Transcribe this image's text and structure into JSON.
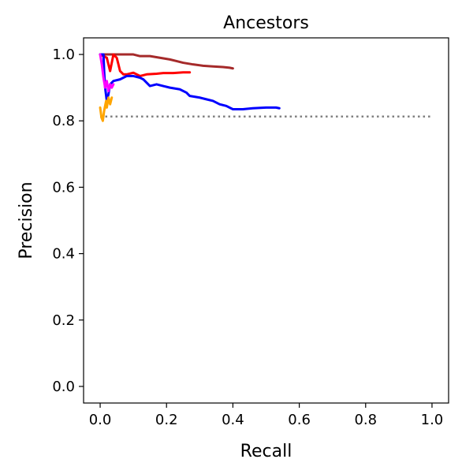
{
  "chart_data": {
    "type": "line",
    "title": "Ancestors",
    "xlabel": "Recall",
    "ylabel": "Precision",
    "xlim": [
      -0.05,
      1.05
    ],
    "ylim": [
      -0.05,
      1.05
    ],
    "xticks": [
      0.0,
      0.2,
      0.4,
      0.6,
      0.8,
      1.0
    ],
    "yticks": [
      0.0,
      0.2,
      0.4,
      0.6,
      0.8,
      1.0
    ],
    "xtick_labels": [
      "0.0",
      "0.2",
      "0.4",
      "0.6",
      "0.8",
      "1.0"
    ],
    "ytick_labels": [
      "0.0",
      "0.2",
      "0.4",
      "0.6",
      "0.8",
      "1.0"
    ],
    "grid": false,
    "legend": "none",
    "baseline": {
      "y": 0.813,
      "x": [
        0.0,
        1.0
      ],
      "color": "#808080",
      "style": "dotted"
    },
    "series": [
      {
        "color": "#a52a2a",
        "points": [
          [
            0.0,
            1.0
          ],
          [
            0.01,
            1.0
          ],
          [
            0.05,
            1.0
          ],
          [
            0.1,
            1.0
          ],
          [
            0.12,
            0.995
          ],
          [
            0.15,
            0.995
          ],
          [
            0.18,
            0.99
          ],
          [
            0.21,
            0.985
          ],
          [
            0.23,
            0.98
          ],
          [
            0.25,
            0.975
          ],
          [
            0.28,
            0.97
          ],
          [
            0.31,
            0.966
          ],
          [
            0.34,
            0.964
          ],
          [
            0.37,
            0.962
          ],
          [
            0.39,
            0.96
          ],
          [
            0.4,
            0.958
          ]
        ]
      },
      {
        "color": "#ff0000",
        "points": [
          [
            0.0,
            1.0
          ],
          [
            0.02,
            0.99
          ],
          [
            0.03,
            0.95
          ],
          [
            0.04,
            1.0
          ],
          [
            0.05,
            0.99
          ],
          [
            0.055,
            0.97
          ],
          [
            0.06,
            0.95
          ],
          [
            0.07,
            0.94
          ],
          [
            0.08,
            0.94
          ],
          [
            0.1,
            0.945
          ],
          [
            0.12,
            0.935
          ],
          [
            0.14,
            0.94
          ],
          [
            0.17,
            0.942
          ],
          [
            0.19,
            0.944
          ],
          [
            0.22,
            0.944
          ],
          [
            0.25,
            0.946
          ],
          [
            0.27,
            0.946
          ]
        ]
      },
      {
        "color": "#0000ff",
        "points": [
          [
            0.0,
            1.0
          ],
          [
            0.01,
            1.0
          ],
          [
            0.012,
            0.95
          ],
          [
            0.015,
            0.9
          ],
          [
            0.02,
            0.86
          ],
          [
            0.025,
            0.88
          ],
          [
            0.03,
            0.91
          ],
          [
            0.04,
            0.92
          ],
          [
            0.06,
            0.925
          ],
          [
            0.08,
            0.935
          ],
          [
            0.1,
            0.935
          ],
          [
            0.12,
            0.93
          ],
          [
            0.13,
            0.925
          ],
          [
            0.14,
            0.915
          ],
          [
            0.15,
            0.905
          ],
          [
            0.17,
            0.91
          ],
          [
            0.19,
            0.905
          ],
          [
            0.21,
            0.9
          ],
          [
            0.24,
            0.895
          ],
          [
            0.26,
            0.885
          ],
          [
            0.27,
            0.875
          ],
          [
            0.3,
            0.87
          ],
          [
            0.32,
            0.865
          ],
          [
            0.34,
            0.86
          ],
          [
            0.36,
            0.85
          ],
          [
            0.38,
            0.845
          ],
          [
            0.4,
            0.835
          ],
          [
            0.43,
            0.835
          ],
          [
            0.46,
            0.838
          ],
          [
            0.5,
            0.84
          ],
          [
            0.53,
            0.84
          ],
          [
            0.54,
            0.838
          ]
        ]
      },
      {
        "color": "#ff00ff",
        "points": [
          [
            0.0,
            1.0
          ],
          [
            0.005,
            0.97
          ],
          [
            0.01,
            0.93
          ],
          [
            0.015,
            0.9
          ],
          [
            0.02,
            0.92
          ],
          [
            0.025,
            0.89
          ],
          [
            0.03,
            0.91
          ],
          [
            0.035,
            0.9
          ],
          [
            0.04,
            0.91
          ]
        ]
      },
      {
        "color": "#ffa500",
        "points": [
          [
            0.0,
            0.84
          ],
          [
            0.004,
            0.81
          ],
          [
            0.008,
            0.8
          ],
          [
            0.012,
            0.83
          ],
          [
            0.018,
            0.86
          ],
          [
            0.02,
            0.84
          ],
          [
            0.025,
            0.87
          ],
          [
            0.03,
            0.85
          ],
          [
            0.035,
            0.87
          ]
        ]
      }
    ]
  }
}
